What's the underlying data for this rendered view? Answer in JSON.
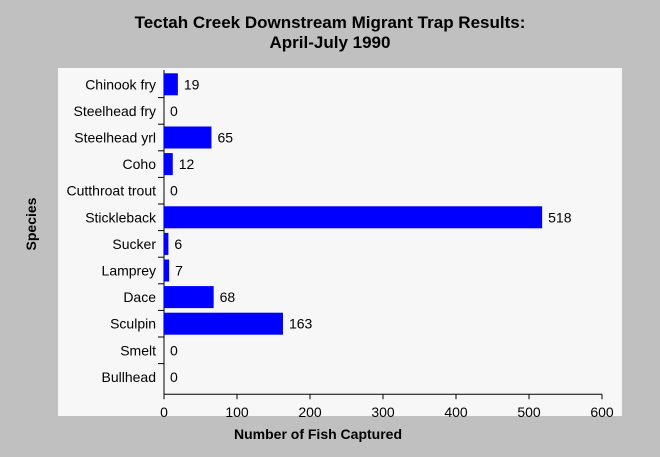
{
  "chart_data": {
    "type": "bar",
    "orientation": "horizontal",
    "title_lines": [
      "Tectah Creek Downstream Migrant Trap Results:",
      "April-July 1990"
    ],
    "xlabel": "Number of Fish Captured",
    "ylabel": "Species",
    "categories": [
      "Chinook fry",
      "Steelhead fry",
      "Steelhead yrl",
      "Coho",
      "Cutthroat trout",
      "Stickleback",
      "Sucker",
      "Lamprey",
      "Dace",
      "Sculpin",
      "Smelt",
      "Bullhead"
    ],
    "values": [
      19,
      0,
      65,
      12,
      0,
      518,
      6,
      7,
      68,
      163,
      0,
      0
    ],
    "xlim": [
      0,
      600
    ],
    "xticks": [
      0,
      100,
      200,
      300,
      400,
      500,
      600
    ],
    "bar_color": "#0000ff",
    "data_labels": true,
    "grid": false
  }
}
